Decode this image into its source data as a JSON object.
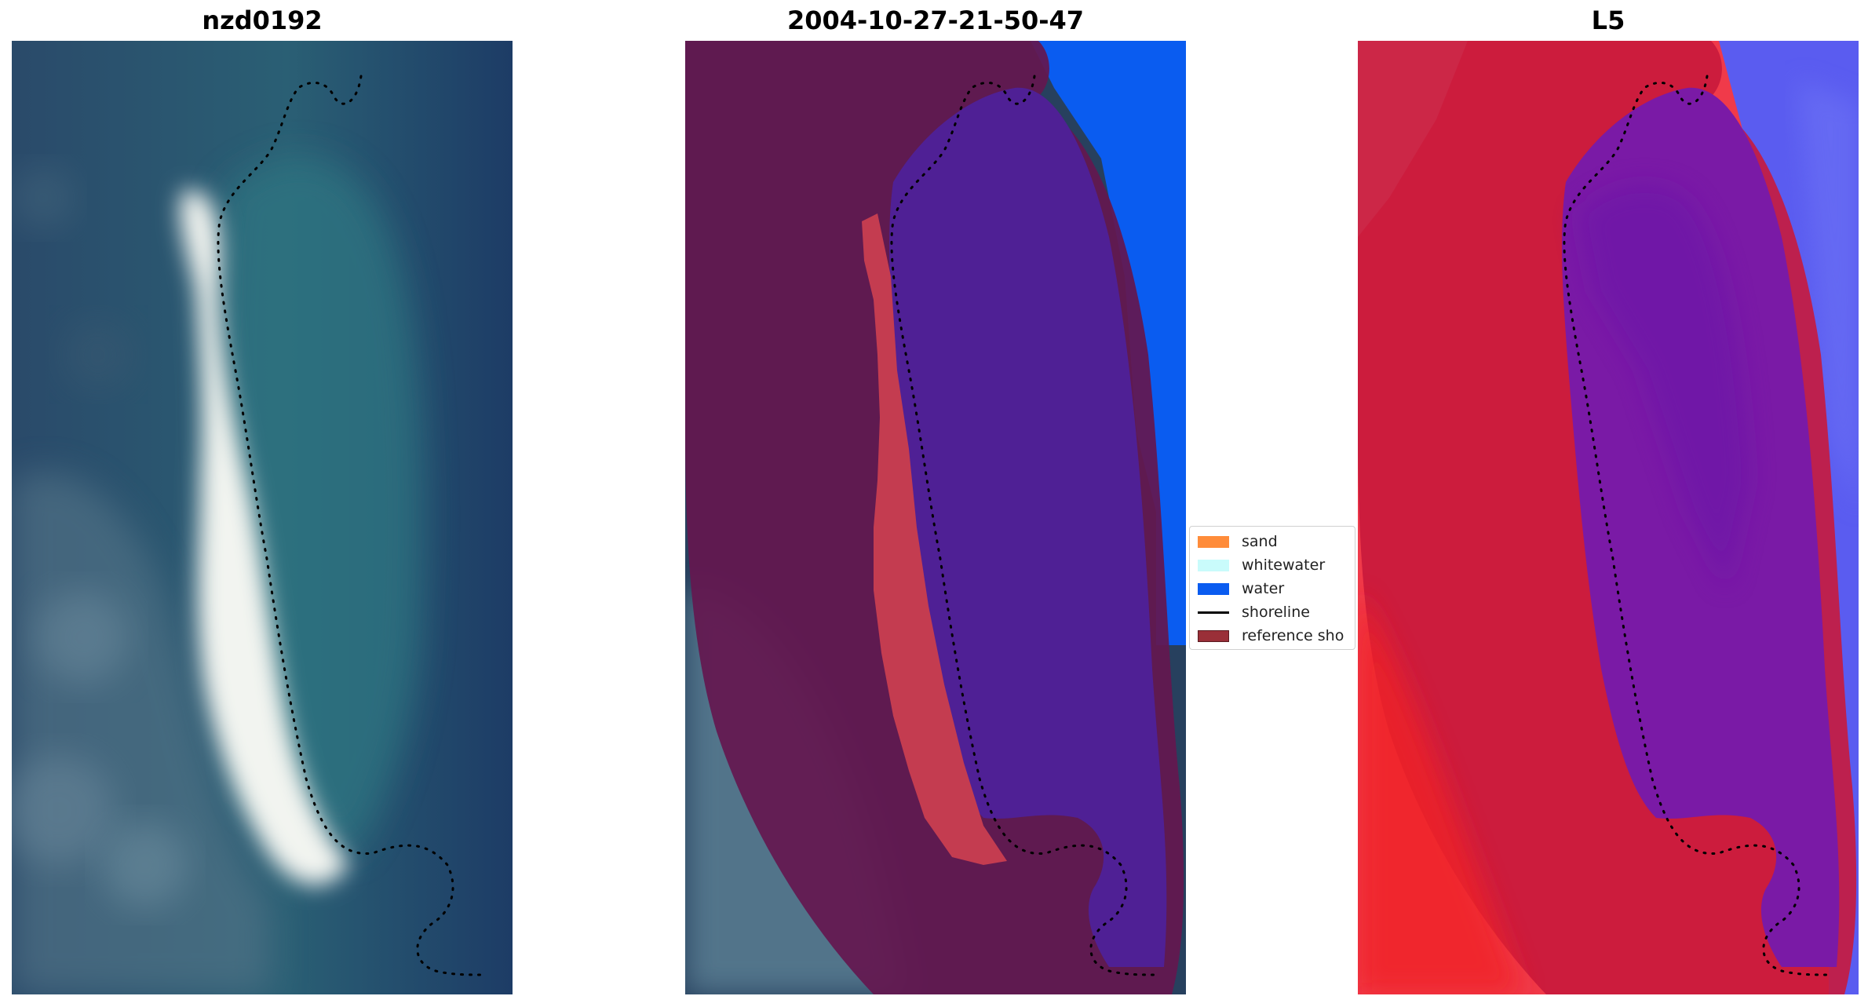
{
  "panels": [
    {
      "title": "nzd0192"
    },
    {
      "title": "2004-10-27-21-50-47"
    },
    {
      "title": "L5"
    }
  ],
  "legend": {
    "items": [
      {
        "label": "sand",
        "color": "#ff8c3a",
        "kind": "patch"
      },
      {
        "label": "whitewater",
        "color": "#c9fbfb",
        "kind": "patch"
      },
      {
        "label": "water",
        "color": "#0a5cf0",
        "kind": "patch"
      },
      {
        "label": "shoreline",
        "color": "#000000",
        "kind": "line"
      },
      {
        "label": "reference sho",
        "color": "#9a2f38",
        "kind": "patch"
      }
    ]
  },
  "colors": {
    "ocean": "#1f3f6b",
    "lagoon": "#2a6b7e",
    "sand_white": "#f2f4f0",
    "buffer_purple": "#641850",
    "water_blue": "#0a5cf0",
    "sand_red": "#c43c50",
    "index_purple": "#7a1aa6",
    "index_red": "#d0183c",
    "index_blue": "#5a5cf0"
  }
}
